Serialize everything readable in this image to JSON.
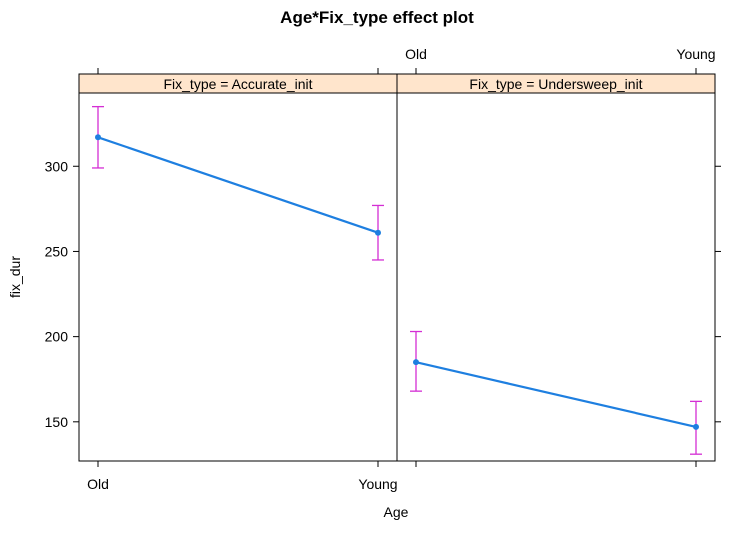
{
  "chart_data": {
    "type": "line",
    "title": "Age*Fix_type effect plot",
    "xlabel": "Age",
    "ylabel": "fix_dur",
    "categories": [
      "Old",
      "Young"
    ],
    "ylim": [
      127,
      343
    ],
    "yticks": [
      150,
      200,
      250,
      300
    ],
    "grid": false,
    "colors": {
      "line": "#1e7fe0",
      "errorbar": "#d42ed4",
      "strip": "#ffe5cc"
    },
    "panels": [
      {
        "strip_label": "Fix_type = Accurate_init",
        "values": [
          317,
          261
        ],
        "lower": [
          299,
          245
        ],
        "upper": [
          335,
          277
        ]
      },
      {
        "strip_label": "Fix_type = Undersweep_init",
        "values": [
          185,
          147
        ],
        "lower": [
          168,
          131
        ],
        "upper": [
          203,
          162
        ]
      }
    ]
  }
}
